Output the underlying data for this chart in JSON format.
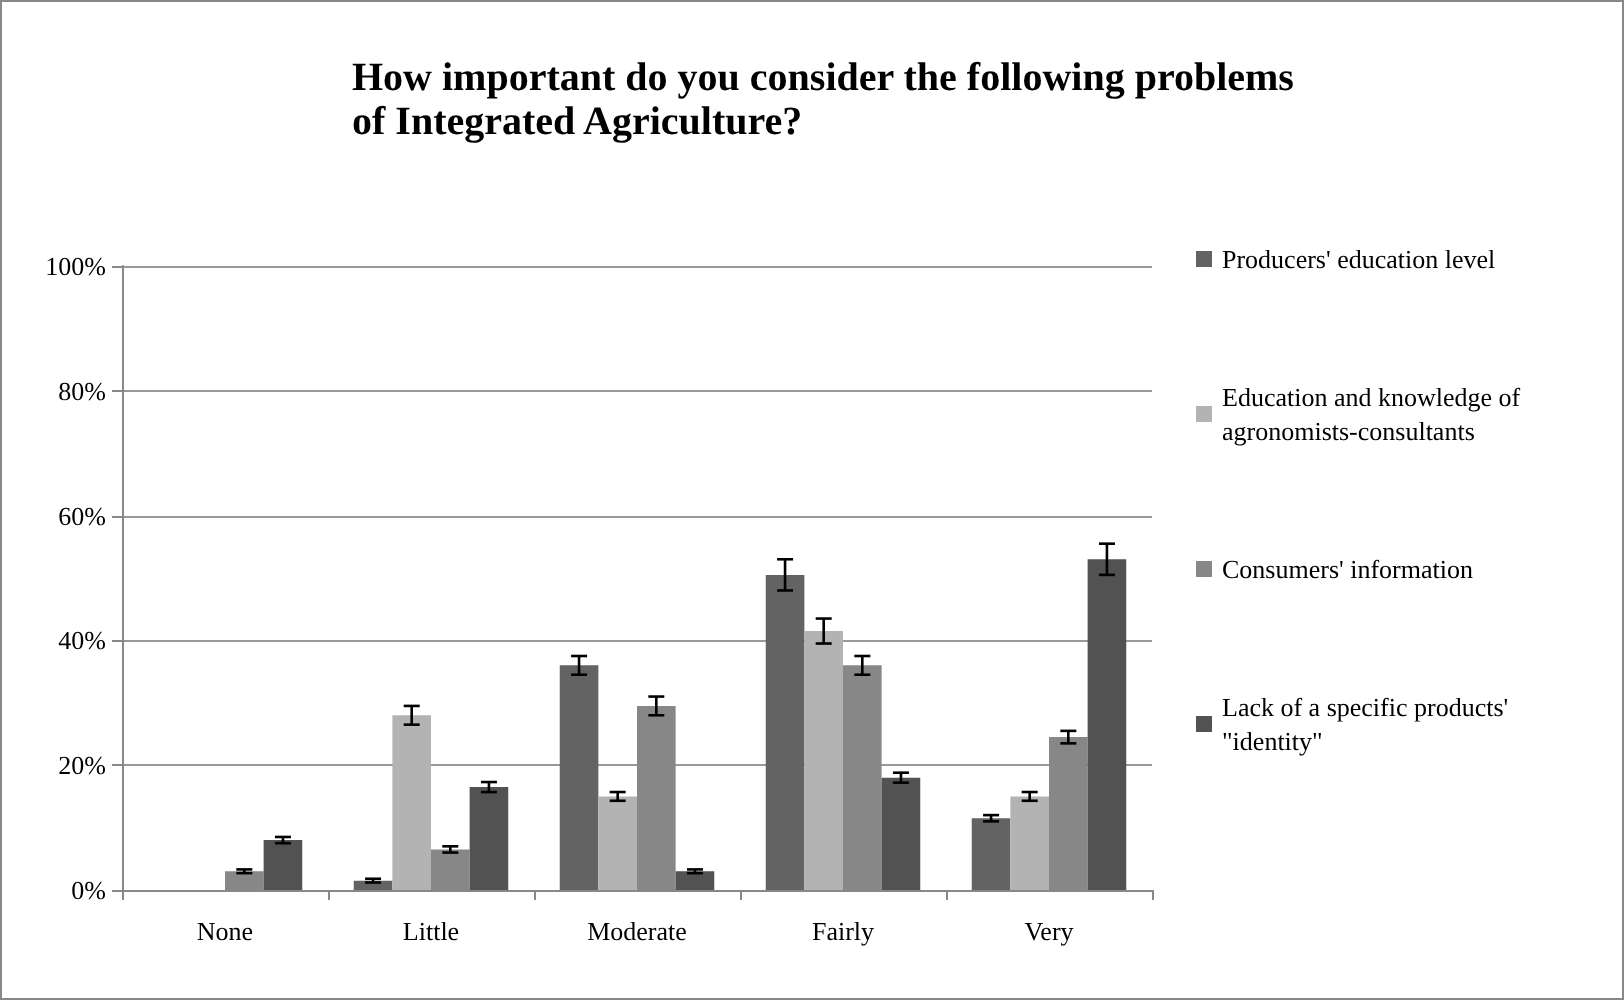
{
  "chart_data": {
    "type": "bar",
    "title": "How important do you consider the following problems of Integrated Agriculture?",
    "categories": [
      "None",
      "Little",
      "Moderate",
      "Fairly",
      "Very"
    ],
    "series": [
      {
        "name": "Producers' education level",
        "color": "#636363",
        "values": [
          0,
          1.5,
          36,
          50.5,
          11.5
        ],
        "errors": [
          null,
          0.3,
          1.5,
          2.5,
          0.5
        ]
      },
      {
        "name": "Education and knowledge of agronomists-consultants",
        "color": "#b3b3b3",
        "values": [
          0,
          28,
          15,
          41.5,
          15
        ],
        "errors": [
          null,
          1.5,
          0.7,
          2,
          0.7
        ]
      },
      {
        "name": "Consumers' information",
        "color": "#878787",
        "values": [
          3,
          6.5,
          29.5,
          36,
          24.5
        ],
        "errors": [
          0.3,
          0.5,
          1.5,
          1.5,
          1
        ]
      },
      {
        "name": "Lack of a specific products' \"identity\"",
        "color": "#525252",
        "values": [
          8,
          16.5,
          3,
          18,
          53
        ],
        "errors": [
          0.5,
          0.8,
          0.3,
          0.8,
          2.5
        ]
      }
    ],
    "ylim": [
      0,
      100
    ],
    "yticks": [
      {
        "value": 0,
        "label": "0%"
      },
      {
        "value": 20,
        "label": "20%"
      },
      {
        "value": 40,
        "label": "40%"
      },
      {
        "value": 60,
        "label": "60%"
      },
      {
        "value": 80,
        "label": "80%"
      },
      {
        "value": 100,
        "label": "100%"
      }
    ],
    "grid": "y",
    "legend": "right"
  }
}
